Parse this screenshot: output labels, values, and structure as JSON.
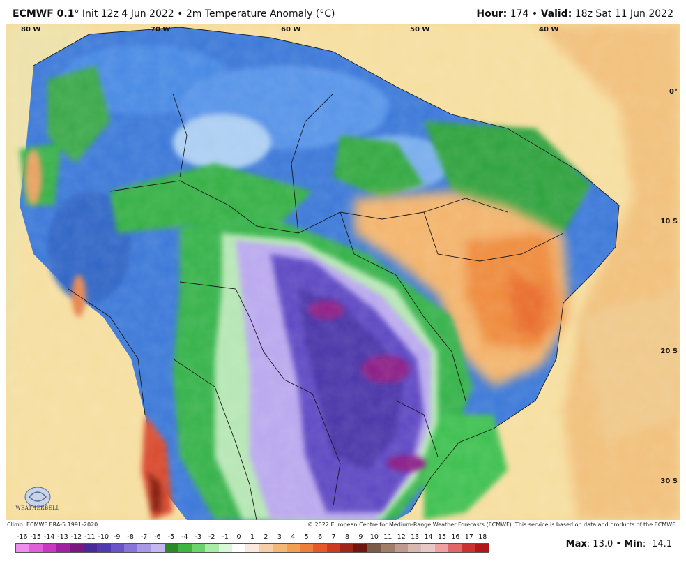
{
  "header": {
    "model": "ECMWF 0.1",
    "init_text": "° Init 12z 4 Jun 2022 • 2m Temperature Anomaly (°C)",
    "hour_label": "Hour:",
    "hour_value": "174",
    "valid_label": "Valid:",
    "valid_value": "18z Sat 11 Jun 2022"
  },
  "map": {
    "longitude_labels": [
      "80 W",
      "70 W",
      "60 W",
      "50 W",
      "40 W"
    ],
    "latitude_labels": [
      "0°",
      "10 S",
      "20 S",
      "30 S"
    ],
    "logo_text": "WEATHERBELL"
  },
  "footer": {
    "climo": "Climo: ECMWF ERA-5 1991-2020",
    "copyright": "© 2022 European Centre for Medium-Range Weather Forecasts (ECMWF). This service is based on data and products of the ECMWF.",
    "max_label": "Max",
    "max_value": "13.0",
    "min_label": "Min",
    "min_value": "-14.1"
  },
  "colorbar": {
    "labels": [
      "-16",
      "-15",
      "-14",
      "-13",
      "-12",
      "-11",
      "-10",
      "-9",
      "-8",
      "-7",
      "-6",
      "-5",
      "-4",
      "-3",
      "-2",
      "-1",
      "0",
      "1",
      "2",
      "3",
      "4",
      "5",
      "6",
      "7",
      "8",
      "9",
      "10",
      "11",
      "12",
      "13",
      "14",
      "15",
      "16",
      "17",
      "18"
    ],
    "colors": [
      "#f08ef0",
      "#e060d8",
      "#c838c0",
      "#a020a0",
      "#7a1880",
      "#4a2898",
      "#5038b0",
      "#6a52c8",
      "#8a74d8",
      "#a898e6",
      "#c4b8f0",
      "#2a8a2a",
      "#3fb43f",
      "#6cd46c",
      "#a8eca8",
      "#d8f8d8",
      "#ffffff",
      "#fbe9e0",
      "#f6cfa8",
      "#f3b878",
      "#f0a050",
      "#ee7e3c",
      "#e4582c",
      "#cc3a22",
      "#a0261a",
      "#701810",
      "#7a5a48",
      "#a07e6a",
      "#c09a90",
      "#d8b8b0",
      "#e8c8c4",
      "#f0a0a0",
      "#e06868",
      "#cc3030",
      "#b01818"
    ]
  }
}
